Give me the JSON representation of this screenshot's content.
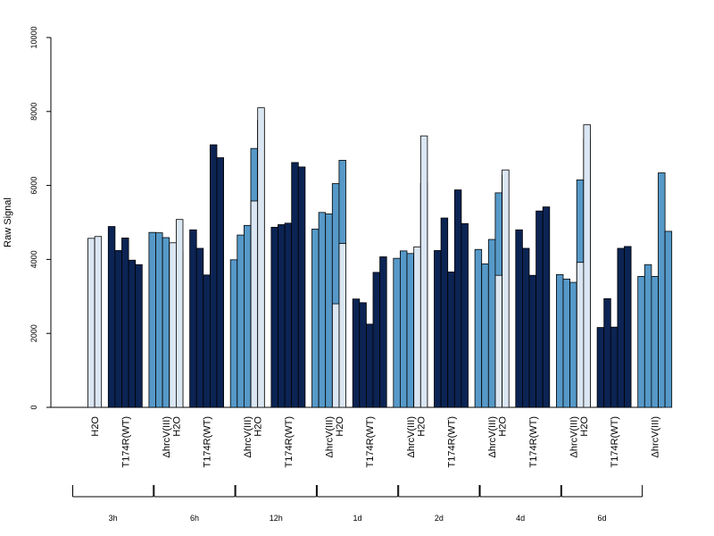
{
  "chart_data": {
    "type": "bar",
    "ylabel": "Raw Signal",
    "ylim": [
      0,
      10000
    ],
    "yticks": [
      0,
      2000,
      4000,
      6000,
      8000,
      10000
    ],
    "grid": false,
    "legend": "none",
    "colors": {
      "H2O": "#dbe6f3",
      "T174R(WT)": "#0c2454",
      "ΔhrcV(III)": "#5699c8"
    },
    "category_labels": [
      "H2O",
      "T174R(WT)",
      "ΔhrcV(III)"
    ],
    "groups": [
      {
        "label": "3h",
        "bars": [
          {
            "category": "H2O",
            "values": [
              4570,
              4620
            ]
          },
          {
            "category": "T174R(WT)",
            "values": [
              4890,
              4240,
              4580,
              3980,
              3860
            ]
          },
          {
            "category": "ΔhrcV(III)",
            "values": [
              4730,
              4720,
              4590,
              4400,
              4210
            ]
          }
        ]
      },
      {
        "label": "6h",
        "bars": [
          {
            "category": "H2O",
            "values": [
              4450,
              5080
            ]
          },
          {
            "category": "T174R(WT)",
            "values": [
              4800,
              4300,
              3580,
              7100,
              6750
            ]
          },
          {
            "category": "ΔhrcV(III)",
            "values": [
              3990,
              4660,
              4920,
              7000,
              7760
            ]
          }
        ]
      },
      {
        "label": "12h",
        "bars": [
          {
            "category": "H2O",
            "values": [
              5580,
              8100
            ]
          },
          {
            "category": "T174R(WT)",
            "values": [
              4870,
              4940,
              4980,
              6620,
              6500
            ]
          },
          {
            "category": "ΔhrcV(III)",
            "values": [
              4820,
              5270,
              5230,
              6050,
              6680
            ]
          }
        ]
      },
      {
        "label": "1d",
        "bars": [
          {
            "category": "H2O",
            "values": [
              2800,
              4430
            ]
          },
          {
            "category": "T174R(WT)",
            "values": [
              2930,
              2830,
              2250,
              3650,
              4070
            ]
          },
          {
            "category": "ΔhrcV(III)",
            "values": [
              4030,
              4230,
              4160,
              4030,
              6060
            ]
          }
        ]
      },
      {
        "label": "2d",
        "bars": [
          {
            "category": "H2O",
            "values": [
              4340,
              7340
            ]
          },
          {
            "category": "T174R(WT)",
            "values": [
              4240,
              5120,
              3660,
              5880,
              4970
            ]
          },
          {
            "category": "ΔhrcV(III)",
            "values": [
              4270,
              3880,
              4540,
              5800,
              6280
            ]
          }
        ]
      },
      {
        "label": "4d",
        "bars": [
          {
            "category": "H2O",
            "values": [
              3570,
              6420
            ]
          },
          {
            "category": "T174R(WT)",
            "values": [
              4800,
              4300,
              3570,
              5310,
              5420
            ]
          },
          {
            "category": "ΔhrcV(III)",
            "values": [
              3590,
              3470,
              3380,
              6150,
              7240
            ]
          }
        ]
      },
      {
        "label": "6d",
        "bars": [
          {
            "category": "H2O",
            "values": [
              3920,
              7640
            ]
          },
          {
            "category": "T174R(WT)",
            "values": [
              2160,
              2940,
              2170,
              4300,
              4350
            ]
          },
          {
            "category": "ΔhrcV(III)",
            "values": [
              3540,
              3860,
              3540,
              6340,
              4760
            ]
          }
        ]
      }
    ]
  }
}
